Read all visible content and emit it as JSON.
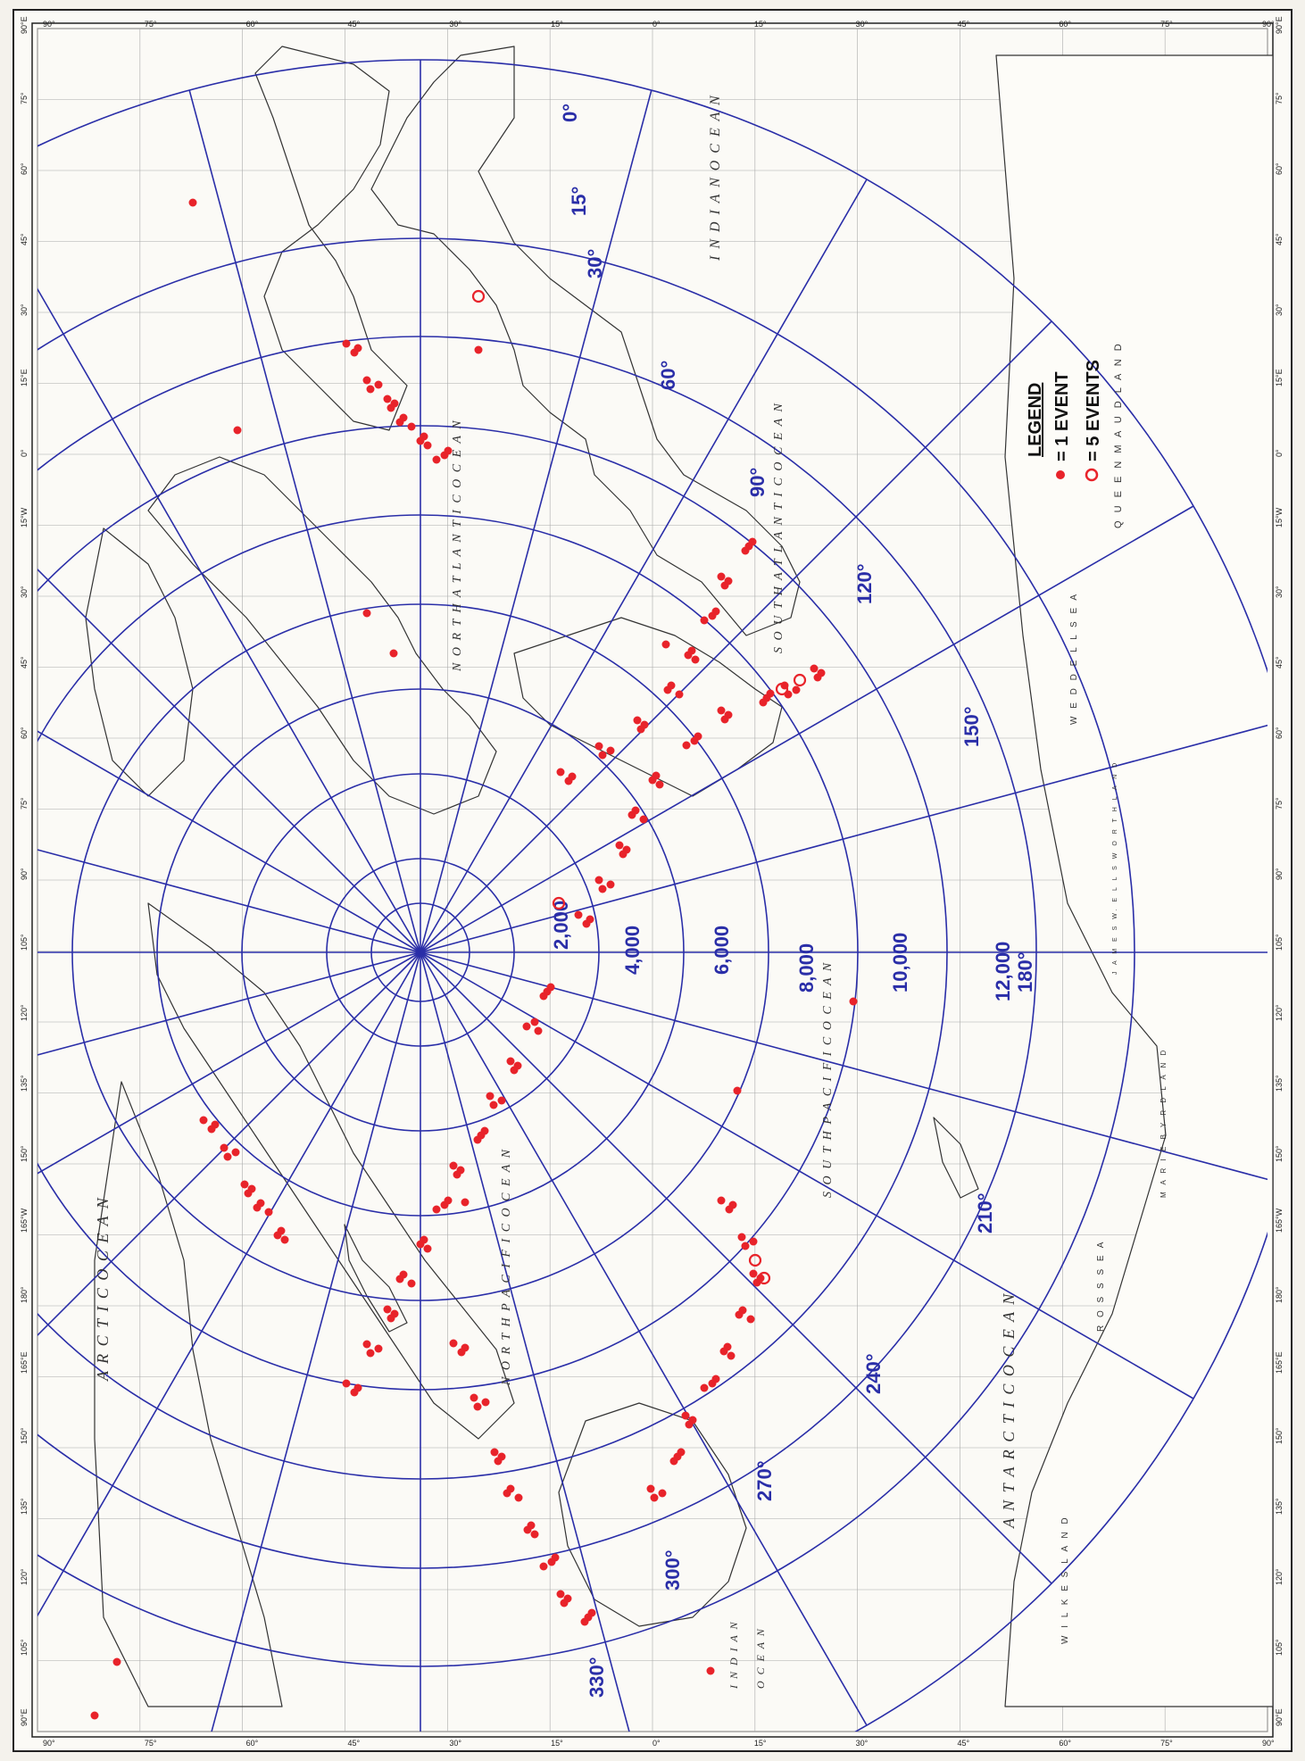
{
  "legend": {
    "title": "LEGEND",
    "single_label": "= 1 EVENT",
    "five_label": "= 5 EVENTS"
  },
  "distance_rings": [
    "2,000",
    "4,000",
    "6,000",
    "8,000",
    "10,000",
    "12,000"
  ],
  "azimuth_labels": [
    "0°",
    "15°",
    "30°",
    "60°",
    "90°",
    "120°",
    "150°",
    "180°",
    "210°",
    "240°",
    "270°",
    "300°",
    "330°"
  ],
  "ocean_labels": {
    "arctic": "A R C T I C   O C E A N",
    "indian": "I N D I A N   O C E A N",
    "antarctic": "A N T A R C T I C   O C E A N",
    "north_atlantic": "N O R T H   A T L A N T I C   O C E A N",
    "south_atlantic": "S O U T H   A T L A N T I C   O C E A N",
    "north_pacific": "N O R T H   P A C I F I C   O C E A N",
    "south_pacific": "S O U T H   P A C I F I C   O C E A N",
    "indian_small": "I N D I A N",
    "ocean_small": "O C E A N"
  },
  "region_labels": {
    "queen_maud": "Q U E E N   M A U D   L A N D",
    "weddell": "W E D D E L L   S E A",
    "ross": "R O S S   S E A",
    "marie_byrd": "M A R I E   B Y R D   L A N D",
    "ellsworth": "J A M E S   W.   E L L S W O R T H   L A N D",
    "wilkes": "W I L K E S   L A N D"
  },
  "latitude_ticks": [
    "90°",
    "75°",
    "60°",
    "45°",
    "30°",
    "15°",
    "0°",
    "15°",
    "30°",
    "45°",
    "60°",
    "75°",
    "90°"
  ],
  "longitude_ticks": [
    "90°E",
    "75°",
    "60°",
    "45°",
    "30°",
    "15°E",
    "0°",
    "15°W",
    "30°",
    "45°",
    "60°",
    "75°",
    "90°",
    "105°",
    "120°",
    "135°",
    "150°",
    "165°W",
    "180°",
    "165°E",
    "150°",
    "135°",
    "120°",
    "105°",
    "90°E"
  ],
  "colors": {
    "grid": "#2a2ea8",
    "event": "#e8232a",
    "coast": "#333333",
    "frame": "#222222"
  }
}
